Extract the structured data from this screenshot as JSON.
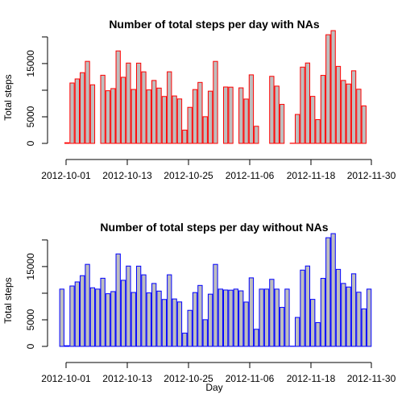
{
  "colors": {
    "bar_fill": "#bebebe",
    "top_border": "#ff0000",
    "bottom_border": "#0000ff",
    "axis": "#000000"
  },
  "chart_data": [
    {
      "type": "bar",
      "title": "Number of total steps per day with NAs",
      "xlabel": "",
      "ylabel": "Total steps",
      "x_tick_labels": [
        "2012-10-01",
        "2012-10-13",
        "2012-10-25",
        "2012-11-06",
        "2012-11-18",
        "2012-11-30"
      ],
      "y_tick_labels": [
        "0",
        "5000",
        "15000"
      ],
      "y_ticks": [
        0,
        5000,
        10000,
        15000,
        20000
      ],
      "ylim": [
        0,
        21500
      ],
      "categories": [
        "2012-10-01",
        "2012-10-02",
        "2012-10-03",
        "2012-10-04",
        "2012-10-05",
        "2012-10-06",
        "2012-10-07",
        "2012-10-08",
        "2012-10-09",
        "2012-10-10",
        "2012-10-11",
        "2012-10-12",
        "2012-10-13",
        "2012-10-14",
        "2012-10-15",
        "2012-10-16",
        "2012-10-17",
        "2012-10-18",
        "2012-10-19",
        "2012-10-20",
        "2012-10-21",
        "2012-10-22",
        "2012-10-23",
        "2012-10-24",
        "2012-10-25",
        "2012-10-26",
        "2012-10-27",
        "2012-10-28",
        "2012-10-29",
        "2012-10-30",
        "2012-10-31",
        "2012-11-01",
        "2012-11-02",
        "2012-11-03",
        "2012-11-04",
        "2012-11-05",
        "2012-11-06",
        "2012-11-07",
        "2012-11-08",
        "2012-11-09",
        "2012-11-10",
        "2012-11-11",
        "2012-11-12",
        "2012-11-13",
        "2012-11-14",
        "2012-11-15",
        "2012-11-16",
        "2012-11-17",
        "2012-11-18",
        "2012-11-19",
        "2012-11-20",
        "2012-11-21",
        "2012-11-22",
        "2012-11-23",
        "2012-11-24",
        "2012-11-25",
        "2012-11-26",
        "2012-11-27",
        "2012-11-28",
        "2012-11-29",
        "2012-11-30"
      ],
      "values": [
        0,
        126,
        11352,
        12116,
        13294,
        15420,
        11015,
        0,
        12811,
        9900,
        10304,
        17382,
        12426,
        15098,
        10139,
        15084,
        13452,
        10056,
        11829,
        10395,
        8821,
        13460,
        8918,
        8355,
        2492,
        6778,
        10119,
        11458,
        5018,
        9819,
        15414,
        0,
        10600,
        10571,
        0,
        10439,
        8334,
        12883,
        3219,
        0,
        0,
        12608,
        10765,
        7336,
        0,
        41,
        5441,
        14339,
        15110,
        8841,
        4472,
        12787,
        20427,
        21194,
        14478,
        11834,
        11162,
        13646,
        10183,
        7047,
        0
      ]
    },
    {
      "type": "bar",
      "title": "Number of total steps per day without NAs",
      "xlabel": "Day",
      "ylabel": "Total steps",
      "x_tick_labels": [
        "2012-10-01",
        "2012-10-13",
        "2012-10-25",
        "2012-11-06",
        "2012-11-18",
        "2012-11-30"
      ],
      "y_tick_labels": [
        "0",
        "5000",
        "15000"
      ],
      "y_ticks": [
        0,
        5000,
        10000,
        15000,
        20000
      ],
      "ylim": [
        0,
        21500
      ],
      "categories": [
        "2012-10-01",
        "2012-10-02",
        "2012-10-03",
        "2012-10-04",
        "2012-10-05",
        "2012-10-06",
        "2012-10-07",
        "2012-10-08",
        "2012-10-09",
        "2012-10-10",
        "2012-10-11",
        "2012-10-12",
        "2012-10-13",
        "2012-10-14",
        "2012-10-15",
        "2012-10-16",
        "2012-10-17",
        "2012-10-18",
        "2012-10-19",
        "2012-10-20",
        "2012-10-21",
        "2012-10-22",
        "2012-10-23",
        "2012-10-24",
        "2012-10-25",
        "2012-10-26",
        "2012-10-27",
        "2012-10-28",
        "2012-10-29",
        "2012-10-30",
        "2012-10-31",
        "2012-11-01",
        "2012-11-02",
        "2012-11-03",
        "2012-11-04",
        "2012-11-05",
        "2012-11-06",
        "2012-11-07",
        "2012-11-08",
        "2012-11-09",
        "2012-11-10",
        "2012-11-11",
        "2012-11-12",
        "2012-11-13",
        "2012-11-14",
        "2012-11-15",
        "2012-11-16",
        "2012-11-17",
        "2012-11-18",
        "2012-11-19",
        "2012-11-20",
        "2012-11-21",
        "2012-11-22",
        "2012-11-23",
        "2012-11-24",
        "2012-11-25",
        "2012-11-26",
        "2012-11-27",
        "2012-11-28",
        "2012-11-29",
        "2012-11-30"
      ],
      "values": [
        10766,
        126,
        11352,
        12116,
        13294,
        15420,
        11015,
        10766,
        12811,
        9900,
        10304,
        17382,
        12426,
        15098,
        10139,
        15084,
        13452,
        10056,
        11829,
        10395,
        8821,
        13460,
        8918,
        8355,
        2492,
        6778,
        10119,
        11458,
        5018,
        9819,
        15414,
        10766,
        10600,
        10571,
        10766,
        10439,
        8334,
        12883,
        3219,
        10766,
        10766,
        12608,
        10765,
        7336,
        10766,
        41,
        5441,
        14339,
        15110,
        8841,
        4472,
        12787,
        20427,
        21194,
        14478,
        11834,
        11162,
        13646,
        10183,
        7047,
        10766
      ]
    }
  ]
}
